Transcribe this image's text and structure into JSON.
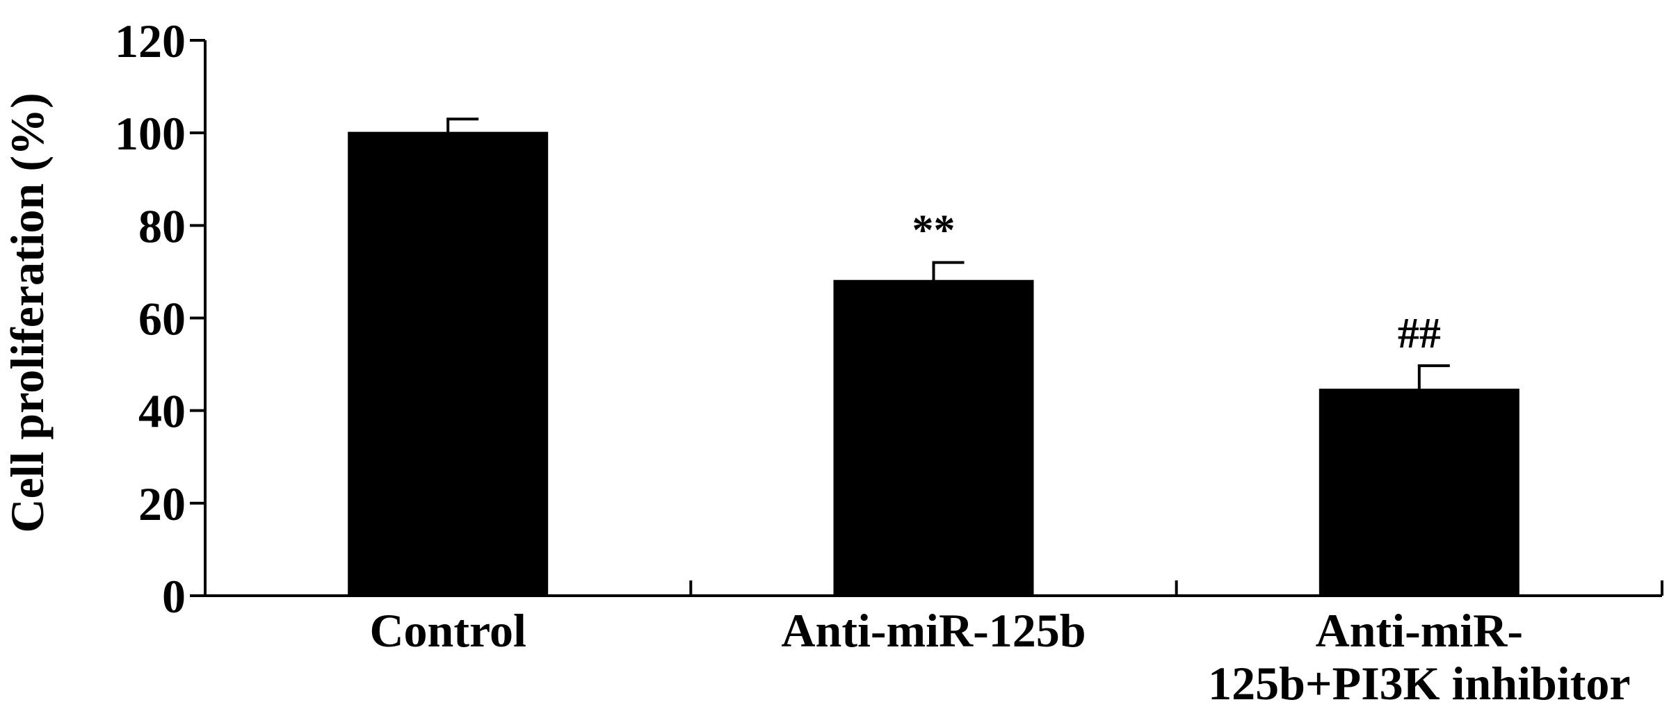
{
  "chart_data": {
    "type": "bar",
    "ylabel": "Cell proliferation (%)",
    "xlabel": "",
    "ylim": [
      0,
      120
    ],
    "yticks": [
      0,
      20,
      40,
      60,
      80,
      100,
      120
    ],
    "categories": [
      {
        "lines": [
          "Control"
        ]
      },
      {
        "lines": [
          "Anti-miR-125b"
        ]
      },
      {
        "lines": [
          "Anti-miR-",
          "125b+PI3K inhibitor"
        ]
      }
    ],
    "series": [
      {
        "values": [
          100,
          68,
          44.5
        ],
        "errors": [
          3,
          4,
          5.2
        ],
        "annotations": [
          "",
          "**",
          "##"
        ],
        "color": "#000000"
      }
    ],
    "grid": false,
    "legend": "none"
  }
}
